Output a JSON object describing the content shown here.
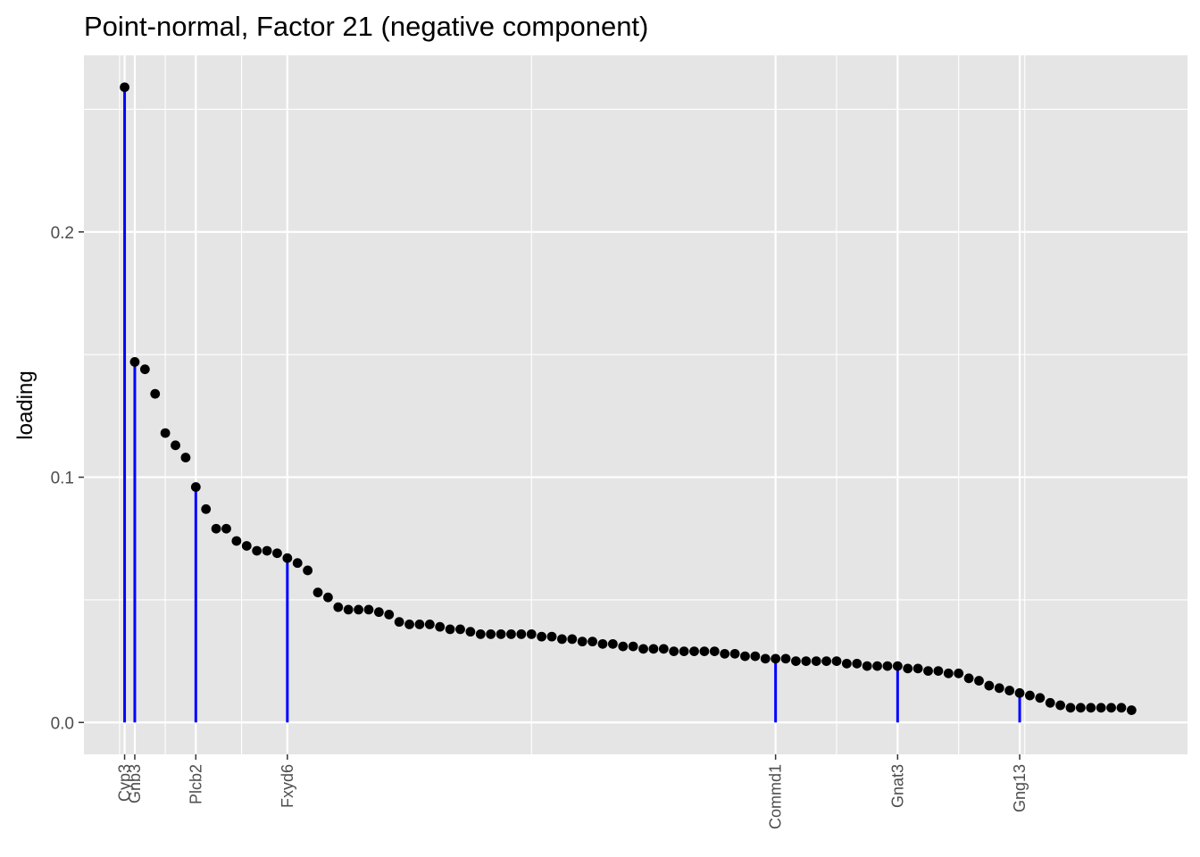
{
  "chart_data": {
    "type": "scatter",
    "title": "Point-normal, Factor 21 (negative component)",
    "xlabel": "",
    "ylabel": "loading",
    "y_ticks": [
      {
        "value": 0.0,
        "label": "0.0"
      },
      {
        "value": 0.1,
        "label": "0.1"
      },
      {
        "value": 0.2,
        "label": "0.2"
      }
    ],
    "ylim": [
      -0.013,
      0.272
    ],
    "xlim": [
      -4.0,
      104.5
    ],
    "x_major_breaks": [
      0,
      1,
      7,
      16,
      64,
      76,
      88
    ],
    "x_minor_breaks": [
      -0.5,
      4,
      11.5,
      40,
      70,
      82,
      88.5
    ],
    "highlight_color": "#0000ff",
    "point_color": "#000000",
    "panel_color": "#e5e5e5",
    "labeled_genes": [
      {
        "gene": "Cyp3",
        "rank": 0
      },
      {
        "gene": "Gnb3",
        "rank": 1
      },
      {
        "gene": "Plcb2",
        "rank": 7
      },
      {
        "gene": "Fxyd6",
        "rank": 16
      },
      {
        "gene": "Commd1",
        "rank": 64
      },
      {
        "gene": "Gnat3",
        "rank": 76
      },
      {
        "gene": "Gng13",
        "rank": 88
      }
    ],
    "values": [
      0.259,
      0.147,
      0.144,
      0.134,
      0.118,
      0.113,
      0.108,
      0.096,
      0.087,
      0.079,
      0.079,
      0.074,
      0.072,
      0.07,
      0.07,
      0.069,
      0.067,
      0.065,
      0.062,
      0.053,
      0.051,
      0.047,
      0.046,
      0.046,
      0.046,
      0.045,
      0.044,
      0.041,
      0.04,
      0.04,
      0.04,
      0.039,
      0.038,
      0.038,
      0.037,
      0.036,
      0.036,
      0.036,
      0.036,
      0.036,
      0.036,
      0.035,
      0.035,
      0.034,
      0.034,
      0.033,
      0.033,
      0.032,
      0.032,
      0.031,
      0.031,
      0.03,
      0.03,
      0.03,
      0.029,
      0.029,
      0.029,
      0.029,
      0.029,
      0.028,
      0.028,
      0.027,
      0.027,
      0.026,
      0.026,
      0.026,
      0.025,
      0.025,
      0.025,
      0.025,
      0.025,
      0.024,
      0.024,
      0.023,
      0.023,
      0.023,
      0.023,
      0.022,
      0.022,
      0.021,
      0.021,
      0.02,
      0.02,
      0.018,
      0.017,
      0.015,
      0.014,
      0.013,
      0.012,
      0.011,
      0.01,
      0.008,
      0.007,
      0.006,
      0.006,
      0.006,
      0.006,
      0.006,
      0.006,
      0.005
    ]
  }
}
